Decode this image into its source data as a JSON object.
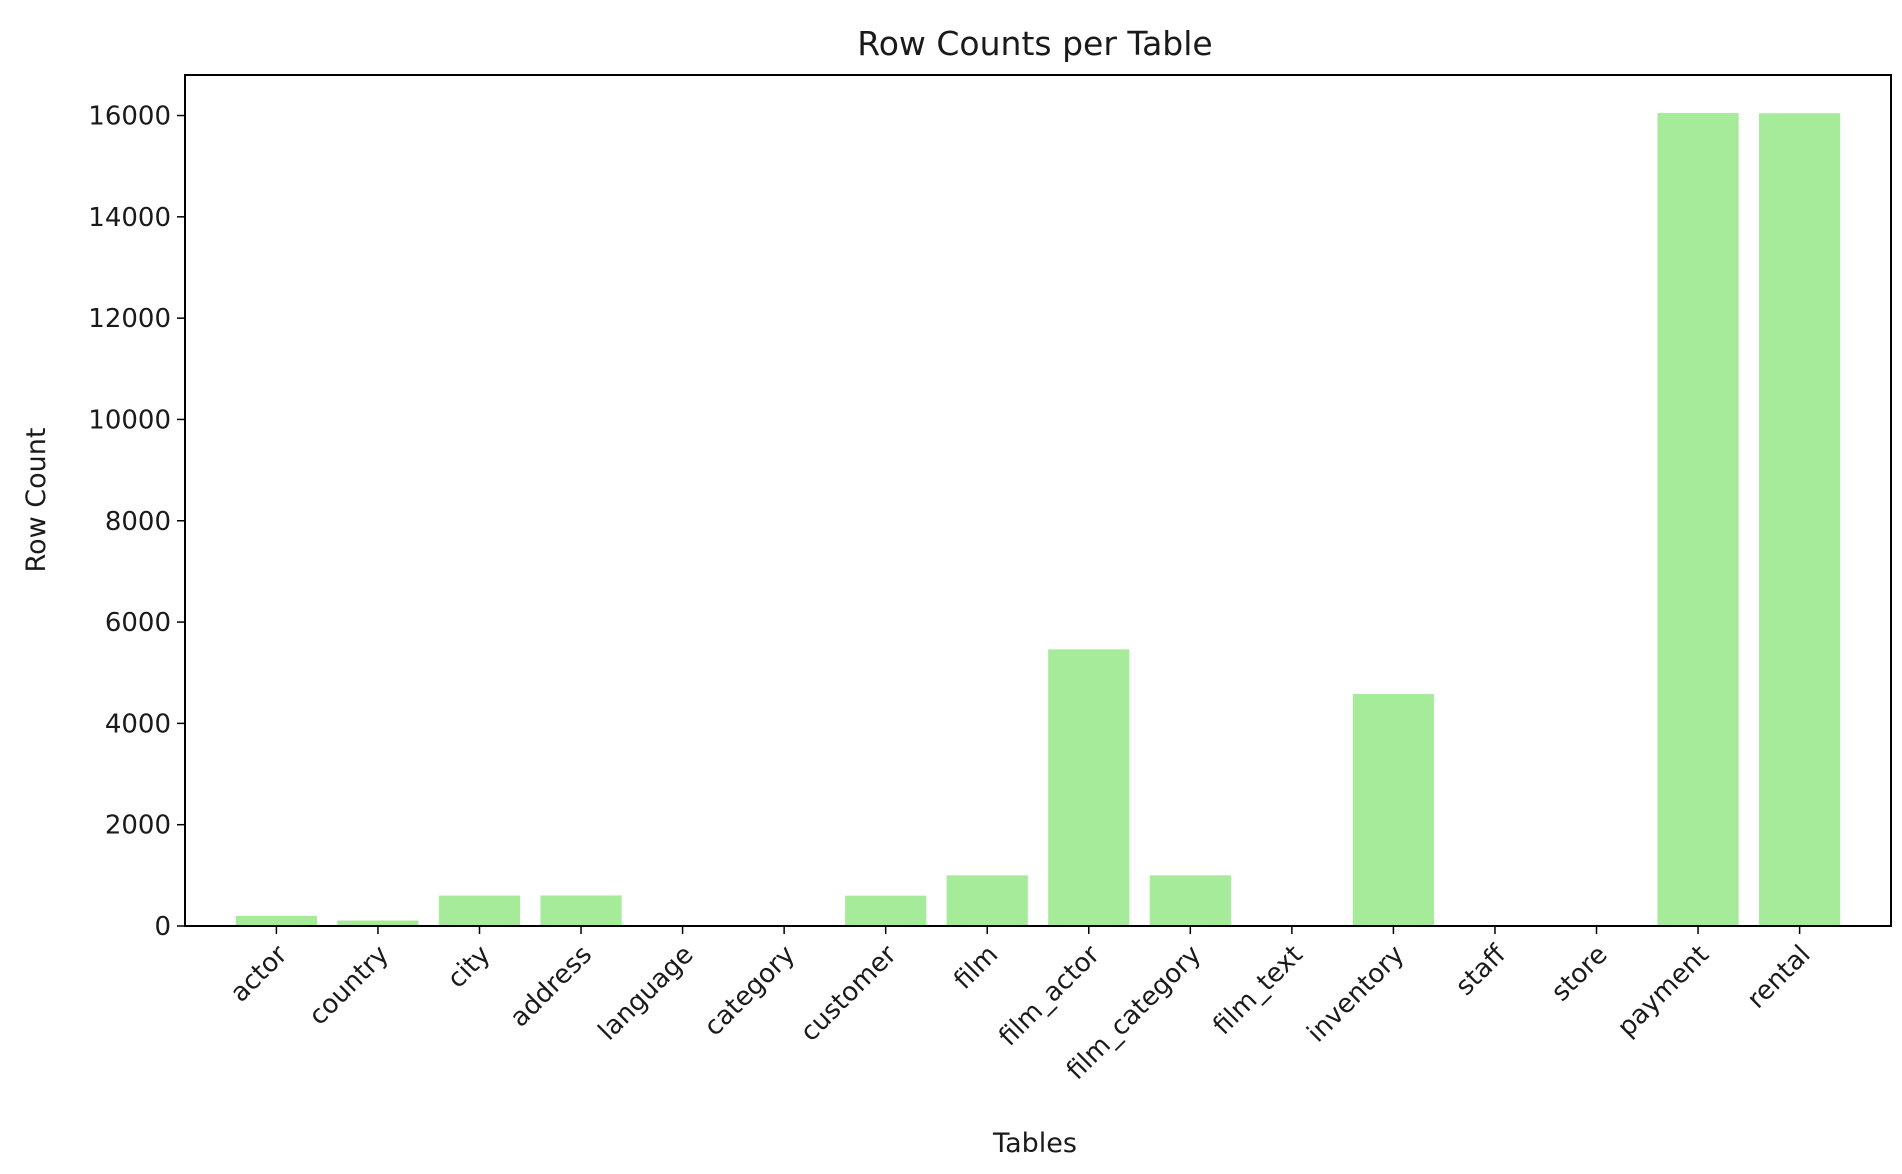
{
  "chart_data": {
    "type": "bar",
    "title": "Row Counts per Table",
    "xlabel": "Tables",
    "ylabel": "Row Count",
    "categories": [
      "actor",
      "country",
      "city",
      "address",
      "language",
      "category",
      "customer",
      "film",
      "film_actor",
      "film_category",
      "film_text",
      "inventory",
      "staff",
      "store",
      "payment",
      "rental"
    ],
    "values": [
      200,
      109,
      600,
      603,
      6,
      16,
      599,
      1000,
      5462,
      1000,
      0,
      4581,
      2,
      2,
      16049,
      16044
    ],
    "ylim": [
      0,
      16800
    ],
    "yticks": [
      0,
      2000,
      4000,
      6000,
      8000,
      10000,
      12000,
      14000,
      16000
    ],
    "bar_color": "#a6eb99",
    "grid": false,
    "legend": "none"
  }
}
